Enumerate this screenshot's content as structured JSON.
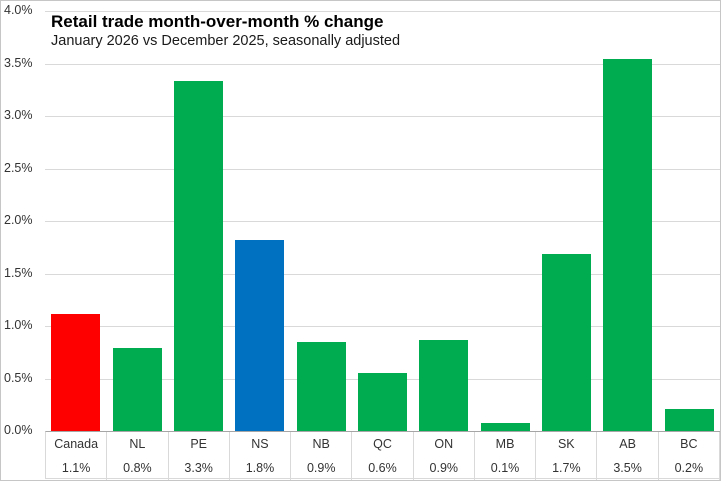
{
  "chart_data": {
    "type": "bar",
    "title": "Retail trade month-over-month % change",
    "subtitle": "January 2026 vs December 2025, seasonally adjusted",
    "categories": [
      "Canada",
      "NL",
      "PE",
      "NS",
      "NB",
      "QC",
      "ON",
      "MB",
      "SK",
      "AB",
      "BC"
    ],
    "values": [
      1.11,
      0.79,
      3.33,
      1.82,
      0.85,
      0.55,
      0.87,
      0.08,
      1.69,
      3.54,
      0.21
    ],
    "value_labels": [
      "1.1%",
      "0.8%",
      "3.3%",
      "1.8%",
      "0.9%",
      "0.6%",
      "0.9%",
      "0.1%",
      "1.7%",
      "3.5%",
      "0.2%"
    ],
    "xlabel": "",
    "ylabel": "",
    "ylim": [
      0,
      4
    ],
    "ytick_values": [
      0,
      0.5,
      1,
      1.5,
      2,
      2.5,
      3,
      3.5,
      4
    ],
    "ytick_labels": [
      "0.0%",
      "0.5%",
      "1.0%",
      "1.5%",
      "2.0%",
      "2.5%",
      "3.0%",
      "3.5%",
      "4.0%"
    ],
    "grid": "horizontal",
    "legend": "none",
    "bar_color_default": "#00AC50",
    "highlight_colors": {
      "Canada": "#FF0000",
      "NS": "#0070C0"
    }
  },
  "colors": {
    "gridline": "#D9D9D9",
    "axis_line": "#A6A6A6",
    "table_line": "#D9D9D9",
    "tick_text": "#333333",
    "title_text": "#000000"
  }
}
